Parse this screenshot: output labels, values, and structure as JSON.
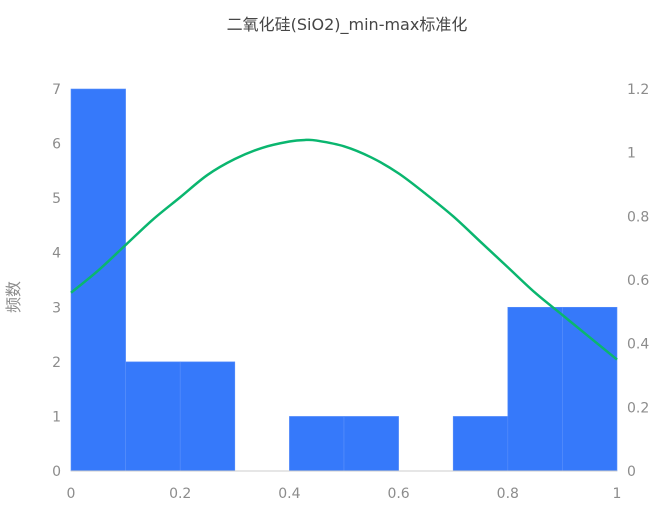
{
  "chart_data": {
    "type": "bar",
    "title": "二氧化硅(SiO2)_min-max标准化",
    "ylabel": "频数",
    "xlabel": "",
    "bins": [
      {
        "x0": 0.0,
        "x1": 0.1,
        "count": 7
      },
      {
        "x0": 0.1,
        "x1": 0.2,
        "count": 2
      },
      {
        "x0": 0.2,
        "x1": 0.3,
        "count": 2
      },
      {
        "x0": 0.3,
        "x1": 0.4,
        "count": 0
      },
      {
        "x0": 0.4,
        "x1": 0.5,
        "count": 1
      },
      {
        "x0": 0.5,
        "x1": 0.6,
        "count": 1
      },
      {
        "x0": 0.6,
        "x1": 0.7,
        "count": 0
      },
      {
        "x0": 0.7,
        "x1": 0.8,
        "count": 1
      },
      {
        "x0": 0.8,
        "x1": 0.9,
        "count": 3
      },
      {
        "x0": 0.9,
        "x1": 1.0,
        "count": 3
      }
    ],
    "xlim": [
      0,
      1
    ],
    "ylim": [
      0,
      7
    ],
    "y2lim": [
      0,
      1.2
    ],
    "x_ticks": [
      "0",
      "0.2",
      "0.4",
      "0.6",
      "0.8",
      "1"
    ],
    "y_ticks": [
      "0",
      "1",
      "2",
      "3",
      "4",
      "5",
      "6",
      "7"
    ],
    "y2_ticks": [
      "0",
      "0.2",
      "0.4",
      "0.6",
      "0.8",
      "1",
      "1.2"
    ],
    "density_curve": {
      "x": [
        0.0,
        0.05,
        0.1,
        0.15,
        0.2,
        0.25,
        0.3,
        0.35,
        0.4,
        0.43,
        0.45,
        0.5,
        0.55,
        0.6,
        0.65,
        0.7,
        0.75,
        0.8,
        0.85,
        0.9,
        0.95,
        1.0
      ],
      "y": [
        0.56,
        0.63,
        0.71,
        0.79,
        0.86,
        0.93,
        0.98,
        1.015,
        1.035,
        1.04,
        1.038,
        1.02,
        0.985,
        0.935,
        0.87,
        0.8,
        0.72,
        0.64,
        0.56,
        0.49,
        0.42,
        0.35
      ]
    },
    "colors": {
      "bar": "#3679fa",
      "bar_edge": "#5b90fb",
      "curve": "#0ab66f",
      "axis": "#cccccc"
    },
    "grid": false
  }
}
